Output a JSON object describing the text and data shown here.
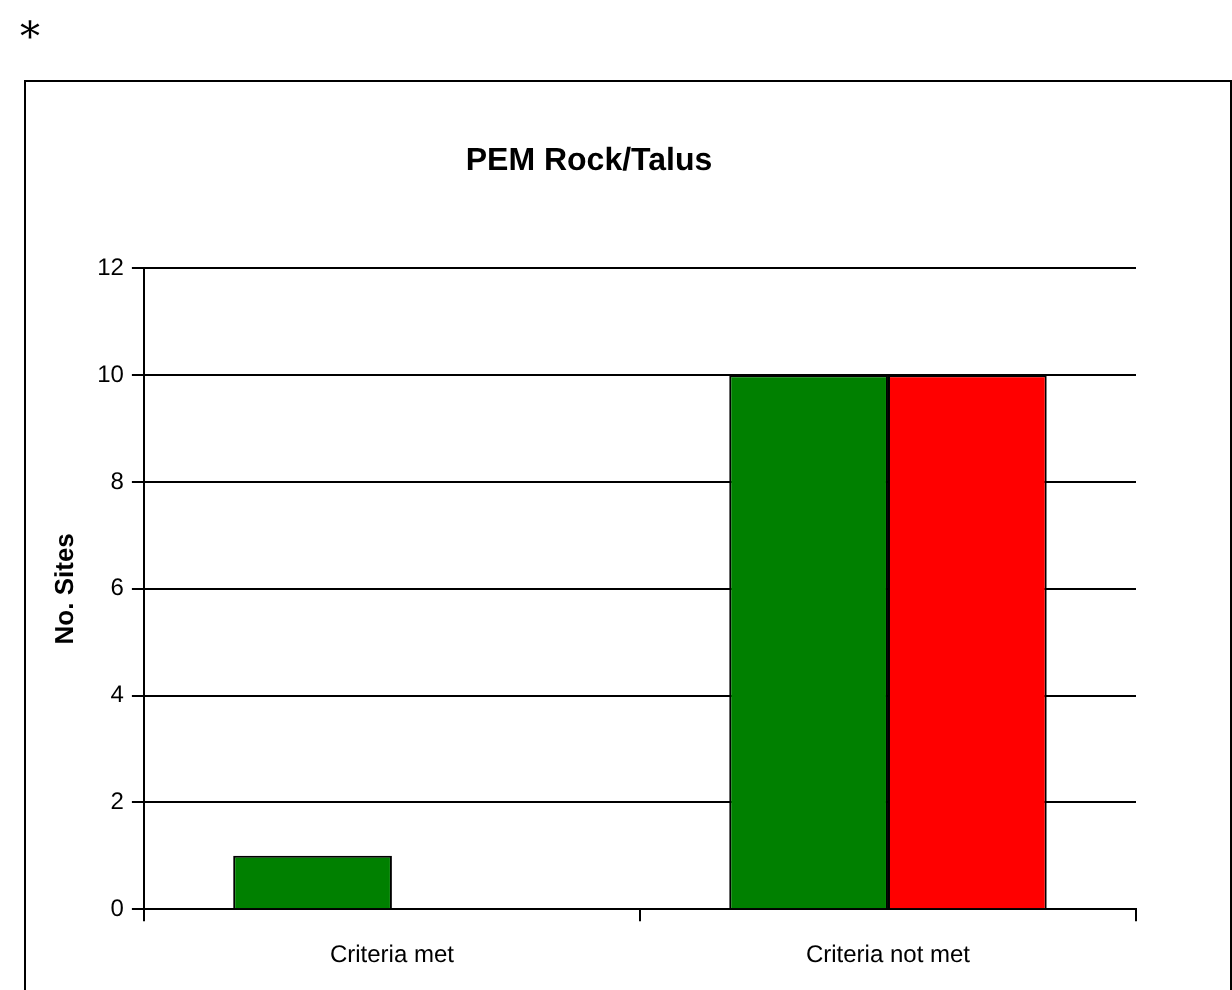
{
  "chart_data": {
    "type": "bar",
    "title": "PEM Rock/Talus",
    "ylabel": "No. Sites",
    "categories": [
      "Criteria met",
      "Criteria not met"
    ],
    "series": [
      {
        "color": "#008000",
        "values": [
          1,
          10
        ]
      },
      {
        "color": "#ff0000",
        "values": [
          0,
          10
        ]
      }
    ],
    "ylim": [
      0,
      12
    ],
    "yticks": [
      0,
      2,
      4,
      6,
      8,
      10,
      12
    ],
    "grid": "y",
    "legend": false,
    "annotations": [
      "*"
    ]
  }
}
